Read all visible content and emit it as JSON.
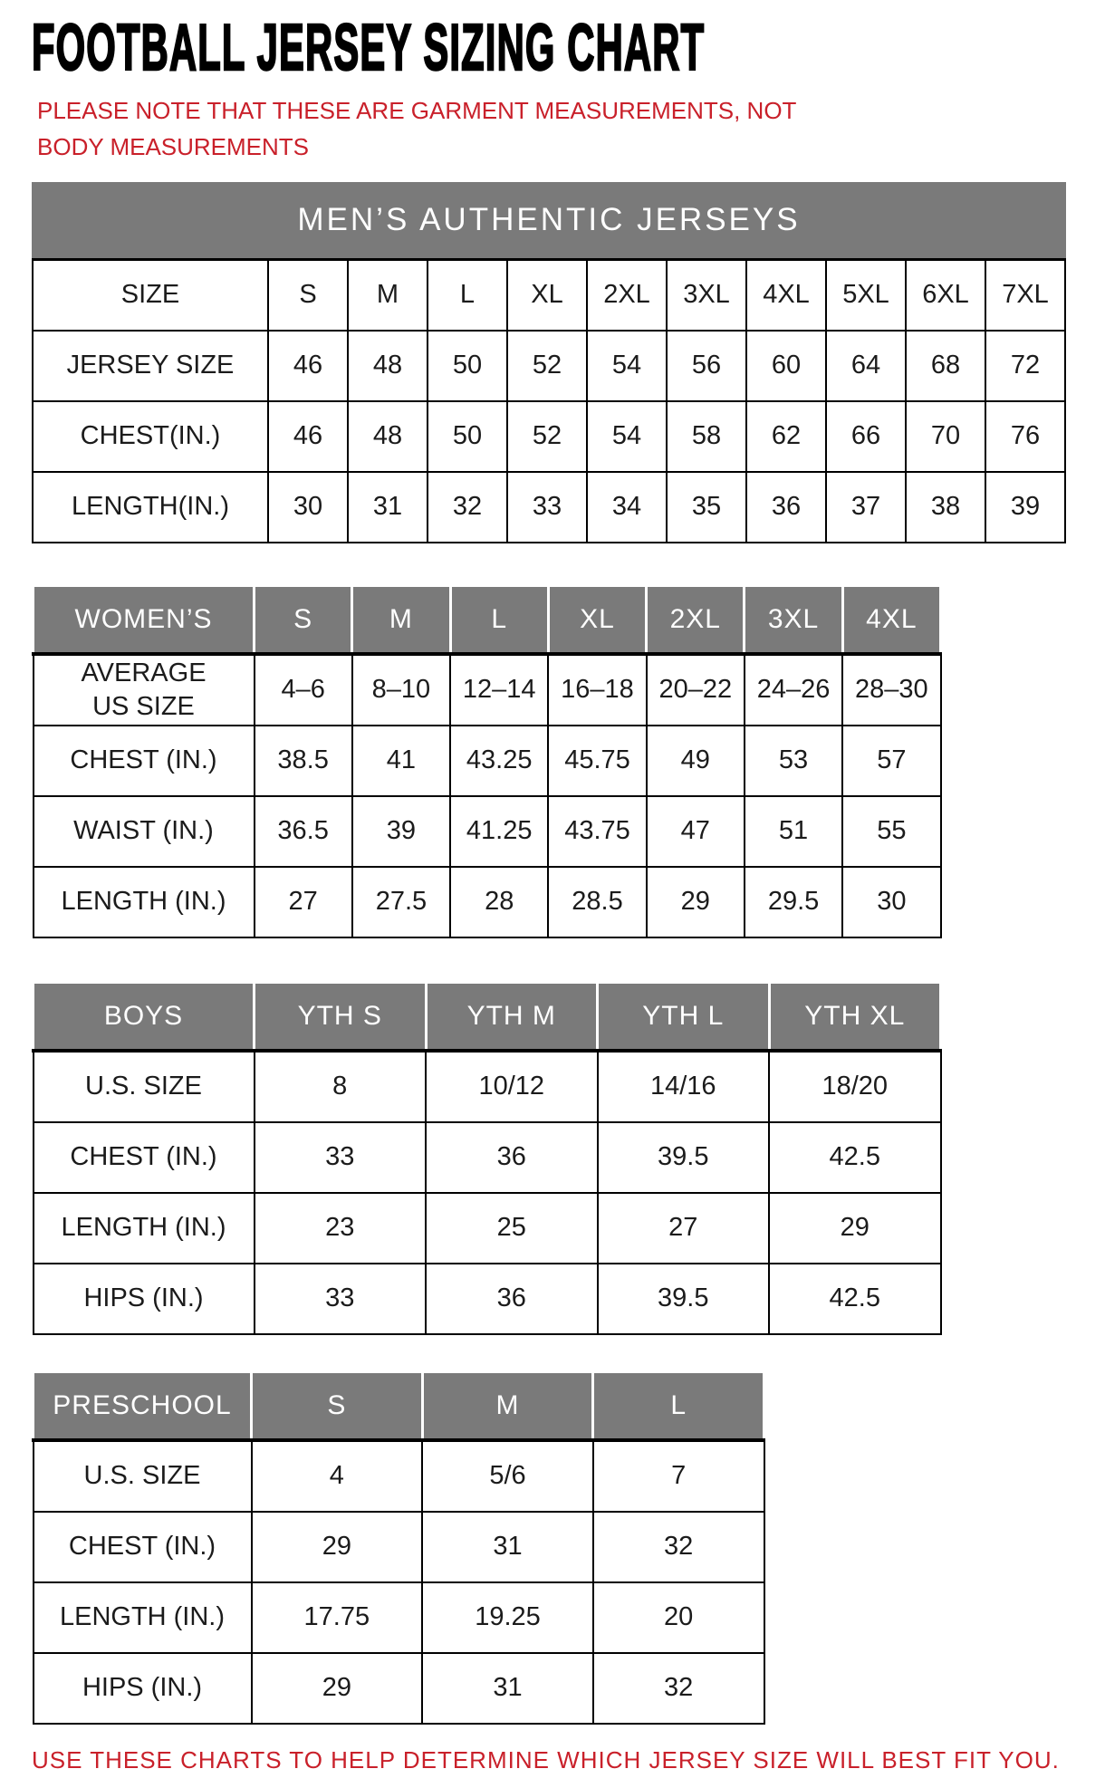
{
  "page": {
    "title": "FOOTBALL JERSEY SIZING CHART",
    "note": "PLEASE NOTE THAT THESE ARE GARMENT MEASUREMENTS, NOT BODY MEASUREMENTS",
    "footer": "USE THESE CHARTS TO HELP DETERMINE WHICH JERSEY SIZE WILL BEST FIT YOU."
  },
  "colors": {
    "accent_red": "#c9202a",
    "header_gray": "#7a7a7a",
    "border_black": "#000000",
    "text_black": "#1b1b1b"
  },
  "tables": [
    {
      "id": "mens",
      "banner": "MEN’S AUTHENTIC JERSEYS",
      "header_style": "plain",
      "header": [
        "SIZE",
        "S",
        "M",
        "L",
        "XL",
        "2XL",
        "3XL",
        "4XL",
        "5XL",
        "6XL",
        "7XL"
      ],
      "rows": [
        [
          "JERSEY SIZE",
          "46",
          "48",
          "50",
          "52",
          "54",
          "56",
          "60",
          "64",
          "68",
          "72"
        ],
        [
          "CHEST(IN.)",
          "46",
          "48",
          "50",
          "52",
          "54",
          "58",
          "62",
          "66",
          "70",
          "76"
        ],
        [
          "LENGTH(IN.)",
          "30",
          "31",
          "32",
          "33",
          "34",
          "35",
          "36",
          "37",
          "38",
          "39"
        ]
      ]
    },
    {
      "id": "womens",
      "banner": null,
      "header_style": "gray",
      "header": [
        "WOMEN’S",
        "S",
        "M",
        "L",
        "XL",
        "2XL",
        "3XL",
        "4XL"
      ],
      "rows": [
        [
          "AVERAGE\nUS SIZE",
          "4–6",
          "8–10",
          "12–14",
          "16–18",
          "20–22",
          "24–26",
          "28–30"
        ],
        [
          "CHEST (IN.)",
          "38.5",
          "41",
          "43.25",
          "45.75",
          "49",
          "53",
          "57"
        ],
        [
          "WAIST (IN.)",
          "36.5",
          "39",
          "41.25",
          "43.75",
          "47",
          "51",
          "55"
        ],
        [
          "LENGTH (IN.)",
          "27",
          "27.5",
          "28",
          "28.5",
          "29",
          "29.5",
          "30"
        ]
      ]
    },
    {
      "id": "boys",
      "banner": null,
      "header_style": "gray",
      "header": [
        "BOYS",
        "YTH S",
        "YTH M",
        "YTH L",
        "YTH XL"
      ],
      "rows": [
        [
          "U.S. SIZE",
          "8",
          "10/12",
          "14/16",
          "18/20"
        ],
        [
          "CHEST (IN.)",
          "33",
          "36",
          "39.5",
          "42.5"
        ],
        [
          "LENGTH (IN.)",
          "23",
          "25",
          "27",
          "29"
        ],
        [
          "HIPS (IN.)",
          "33",
          "36",
          "39.5",
          "42.5"
        ]
      ]
    },
    {
      "id": "preschool",
      "banner": null,
      "header_style": "gray",
      "header": [
        "PRESCHOOL",
        "S",
        "M",
        "L"
      ],
      "rows": [
        [
          "U.S. SIZE",
          "4",
          "5/6",
          "7"
        ],
        [
          "CHEST (IN.)",
          "29",
          "31",
          "32"
        ],
        [
          "LENGTH (IN.)",
          "17.75",
          "19.25",
          "20"
        ],
        [
          "HIPS (IN.)",
          "29",
          "31",
          "32"
        ]
      ]
    }
  ]
}
